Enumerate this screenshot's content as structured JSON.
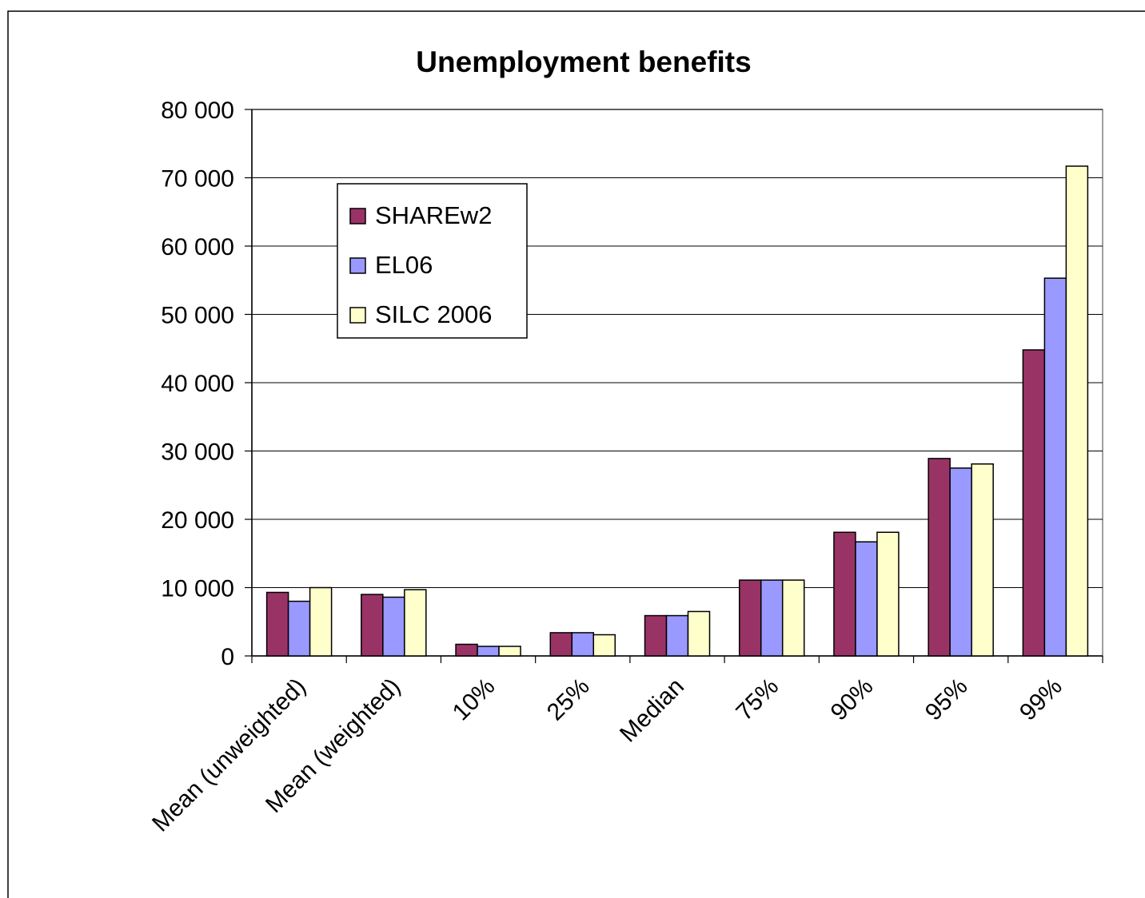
{
  "chart_data": {
    "type": "bar",
    "title": "Unemployment benefits",
    "xlabel": "",
    "ylabel": "",
    "ylim": [
      0,
      80000
    ],
    "yticks": [
      0,
      10000,
      20000,
      30000,
      40000,
      50000,
      60000,
      70000,
      80000
    ],
    "ytick_labels": [
      "0",
      "10 000",
      "20 000",
      "30 000",
      "40 000",
      "50 000",
      "60 000",
      "70 000",
      "80 000"
    ],
    "categories": [
      "Mean (unweighted)",
      "Mean (weighted)",
      "10%",
      "25%",
      "Median",
      "75%",
      "90%",
      "95%",
      "99%"
    ],
    "series": [
      {
        "name": "SHAREw2",
        "color": "#993366",
        "values": [
          9300,
          9000,
          1700,
          3400,
          5900,
          11100,
          18100,
          28900,
          44800
        ]
      },
      {
        "name": "EL06",
        "color": "#9999ff",
        "values": [
          8000,
          8600,
          1400,
          3400,
          5900,
          11100,
          16700,
          27500,
          55300
        ]
      },
      {
        "name": "SILC 2006",
        "color": "#ffffcc",
        "values": [
          10000,
          9700,
          1400,
          3100,
          6500,
          11100,
          18100,
          28100,
          71700
        ]
      }
    ],
    "grid": true,
    "legend_position": "upper-left inside plot"
  }
}
